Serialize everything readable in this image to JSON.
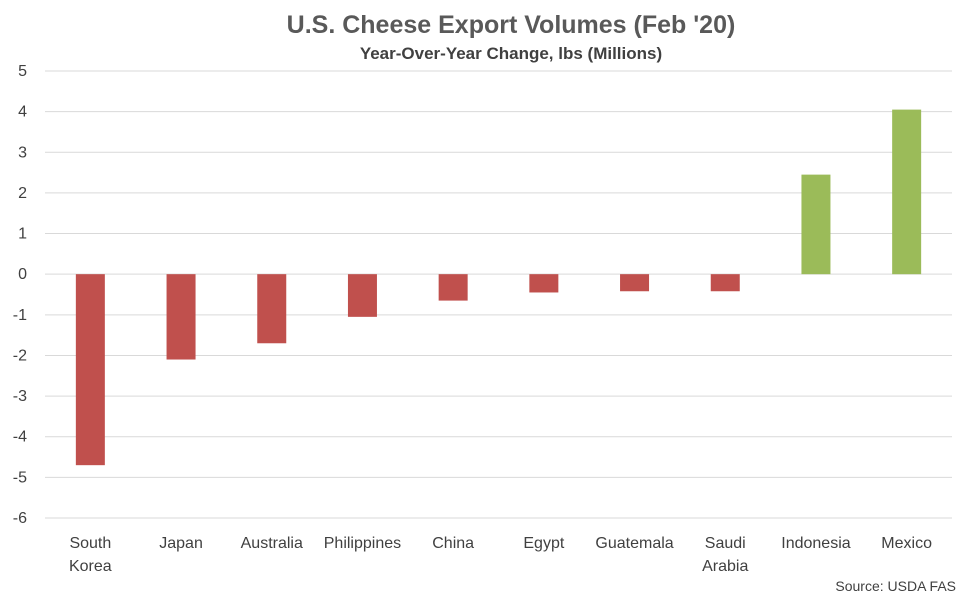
{
  "chart_data": {
    "type": "bar",
    "title": "U.S. Cheese Export Volumes (Feb '20)",
    "subtitle": "Year-Over-Year Change, lbs (Millions)",
    "categories": [
      [
        "South",
        "Korea"
      ],
      [
        "Japan"
      ],
      [
        "Australia"
      ],
      [
        "Philippines"
      ],
      [
        "China"
      ],
      [
        "Egypt"
      ],
      [
        "Guatemala"
      ],
      [
        "Saudi",
        "Arabia"
      ],
      [
        "Indonesia"
      ],
      [
        "Mexico"
      ]
    ],
    "values": [
      -4.7,
      -2.1,
      -1.7,
      -1.05,
      -0.65,
      -0.45,
      -0.42,
      -0.42,
      2.45,
      4.05
    ],
    "ylim": [
      -6,
      5
    ],
    "yticks": [
      "5",
      "4",
      "3",
      "2",
      "1",
      "0",
      "-1",
      "-2",
      "-3",
      "-4",
      "-5",
      "-6"
    ],
    "ytick_values": [
      5,
      4,
      3,
      2,
      1,
      0,
      -1,
      -2,
      -3,
      -4,
      -5,
      -6
    ],
    "grid": true,
    "colors": {
      "negative": "#C0504D",
      "positive": "#9BBB59",
      "grid": "#D9D9D9"
    },
    "source": "Source: USDA FAS"
  }
}
